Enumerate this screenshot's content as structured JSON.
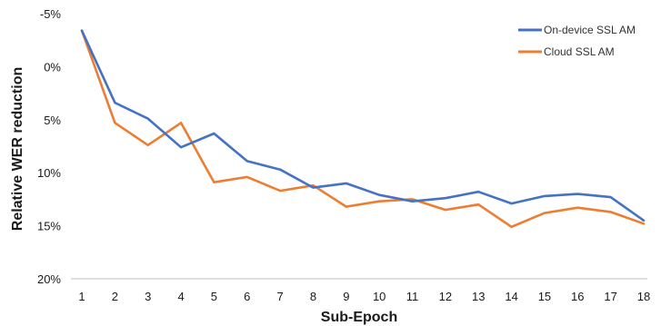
{
  "chart_data": {
    "type": "line",
    "title": "",
    "xlabel": "Sub-Epoch",
    "ylabel": "Relative WER reduction",
    "x": [
      1,
      2,
      3,
      4,
      5,
      6,
      7,
      8,
      9,
      10,
      11,
      12,
      13,
      14,
      15,
      16,
      17,
      18
    ],
    "x_tick_labels": [
      "1",
      "2",
      "3",
      "4",
      "5",
      "6",
      "7",
      "8",
      "9",
      "10",
      "11",
      "12",
      "13",
      "14",
      "15",
      "16",
      "17",
      "18"
    ],
    "y_ticks": [
      -5,
      0,
      5,
      10,
      15,
      20
    ],
    "y_tick_labels": [
      "-5%",
      "0%",
      "5%",
      "10%",
      "15%",
      "20%"
    ],
    "y_range": [
      -5,
      20
    ],
    "y_axis_inverted": true,
    "grid": false,
    "legend_position": "top-right",
    "series": [
      {
        "name": "On-device SSL AM",
        "color": "#4472C4",
        "values": [
          -3.4,
          3.4,
          4.9,
          7.6,
          6.3,
          8.9,
          9.7,
          11.4,
          11.0,
          12.1,
          12.7,
          12.4,
          11.8,
          12.9,
          12.2,
          12.0,
          12.3,
          14.5
        ]
      },
      {
        "name": "Cloud SSL AM",
        "color": "#ED7D31",
        "values": [
          -3.4,
          5.3,
          7.4,
          5.3,
          10.9,
          10.4,
          11.7,
          11.2,
          13.2,
          12.7,
          12.5,
          13.5,
          13.0,
          15.1,
          13.8,
          13.3,
          13.7,
          14.8
        ]
      }
    ]
  }
}
